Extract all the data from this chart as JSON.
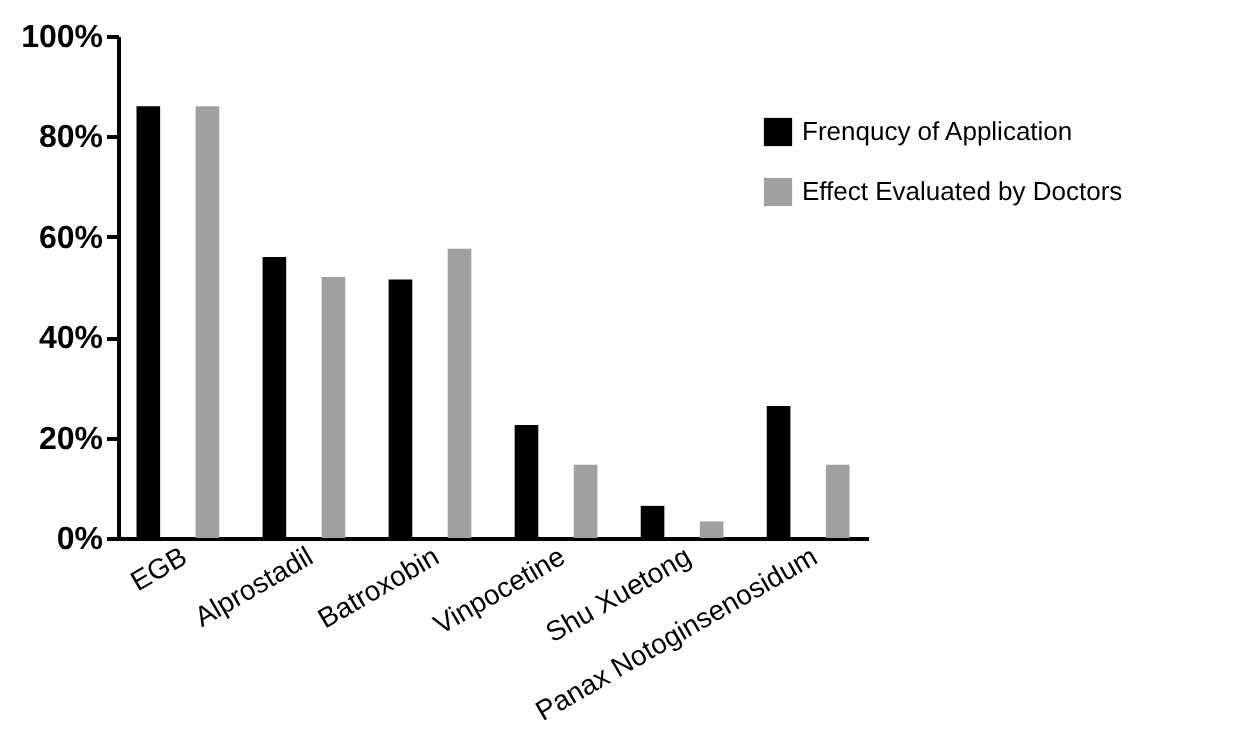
{
  "chart_data": {
    "type": "bar",
    "categories": [
      "EGB",
      "Alprostadil",
      "Batroxobin",
      "Vinpocetine",
      "Shu Xuetong",
      "Panax Notoginsenosidum"
    ],
    "series": [
      {
        "name": "Frenqucy of Application",
        "color": "#000000",
        "values": [
          86,
          56,
          51.5,
          22.5,
          6.4,
          26.3
        ]
      },
      {
        "name": "Effect Evaluated by Doctors",
        "color": "#a0a0a0",
        "values": [
          86,
          52,
          57.6,
          14.6,
          3.3,
          14.6
        ]
      }
    ],
    "ylim": [
      0,
      100
    ],
    "yticks": [
      {
        "value": 0,
        "label": "0%"
      },
      {
        "value": 20,
        "label": "20%"
      },
      {
        "value": 40,
        "label": "40%"
      },
      {
        "value": 60,
        "label": "60%"
      },
      {
        "value": 80,
        "label": "80%"
      },
      {
        "value": 100,
        "label": "100%"
      }
    ],
    "grid": false,
    "legend": "top right"
  }
}
